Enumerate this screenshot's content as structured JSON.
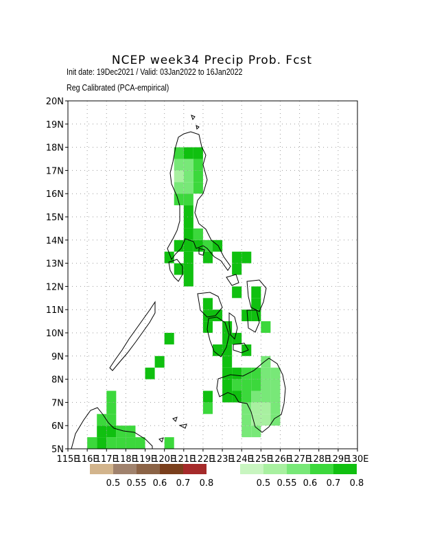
{
  "title": "NCEP week34 Precip Prob. Fcst",
  "subtitle_1": "Init date: 19Dec2021 / Valid: 03Jan2022 to 16Jan2022",
  "subtitle_2": "Reg Calibrated (PCA-empirical)",
  "map": {
    "lon_range": [
      115,
      130
    ],
    "lat_range": [
      5,
      20
    ],
    "grid": "dotted",
    "lat_ticks": [
      "5N",
      "6N",
      "7N",
      "8N",
      "9N",
      "10N",
      "11N",
      "12N",
      "13N",
      "14N",
      "15N",
      "16N",
      "17N",
      "18N",
      "19N",
      "20N"
    ],
    "lon_ticks": [
      "115E",
      "116E",
      "117E",
      "118E",
      "119E",
      "120E",
      "121E",
      "122E",
      "123E",
      "124E",
      "125E",
      "126E",
      "127E",
      "128E",
      "129E",
      "130E"
    ]
  },
  "legend_dry": {
    "labels": [
      "0.5",
      "0.55",
      "0.6",
      "0.7",
      "0.8"
    ],
    "colors": [
      "#d2b48c",
      "#a0826d",
      "#8b6346",
      "#7a3f1c",
      "#a52a2a"
    ]
  },
  "legend_wet": {
    "labels": [
      "0.5",
      "0.55",
      "0.6",
      "0.7",
      "0.8"
    ],
    "colors": [
      "#c8f5c0",
      "#a8f0a0",
      "#78e878",
      "#3cd83c",
      "#10c010"
    ]
  },
  "cells": [
    {
      "lon": 120.75,
      "lat": 17.75,
      "level": 3
    },
    {
      "lon": 121.25,
      "lat": 17.75,
      "level": 4
    },
    {
      "lon": 121.75,
      "lat": 17.75,
      "level": 4
    },
    {
      "lon": 120.75,
      "lat": 17.25,
      "level": 2
    },
    {
      "lon": 121.25,
      "lat": 17.25,
      "level": 2
    },
    {
      "lon": 121.75,
      "lat": 17.25,
      "level": 3
    },
    {
      "lon": 120.75,
      "lat": 16.75,
      "level": 1
    },
    {
      "lon": 121.25,
      "lat": 16.75,
      "level": 2
    },
    {
      "lon": 121.75,
      "lat": 16.75,
      "level": 3
    },
    {
      "lon": 120.75,
      "lat": 16.25,
      "level": 2
    },
    {
      "lon": 121.25,
      "lat": 16.25,
      "level": 2
    },
    {
      "lon": 121.75,
      "lat": 16.25,
      "level": 3
    },
    {
      "lon": 120.75,
      "lat": 15.75,
      "level": 3
    },
    {
      "lon": 121.25,
      "lat": 15.75,
      "level": 3
    },
    {
      "lon": 121.25,
      "lat": 15.25,
      "level": 4
    },
    {
      "lon": 121.25,
      "lat": 14.75,
      "level": 4
    },
    {
      "lon": 121.25,
      "lat": 14.25,
      "level": 4
    },
    {
      "lon": 121.75,
      "lat": 14.25,
      "level": 3
    },
    {
      "lon": 120.75,
      "lat": 13.75,
      "level": 4
    },
    {
      "lon": 121.25,
      "lat": 13.75,
      "level": 4
    },
    {
      "lon": 121.75,
      "lat": 13.75,
      "level": 4
    },
    {
      "lon": 122.25,
      "lat": 13.75,
      "level": 3
    },
    {
      "lon": 122.75,
      "lat": 13.75,
      "level": 4
    },
    {
      "lon": 120.25,
      "lat": 13.25,
      "level": 4
    },
    {
      "lon": 121.25,
      "lat": 13.25,
      "level": 4
    },
    {
      "lon": 122.25,
      "lat": 13.25,
      "level": 4
    },
    {
      "lon": 123.75,
      "lat": 13.25,
      "level": 4
    },
    {
      "lon": 124.25,
      "lat": 13.25,
      "level": 4
    },
    {
      "lon": 120.75,
      "lat": 12.75,
      "level": 4
    },
    {
      "lon": 121.25,
      "lat": 12.75,
      "level": 4
    },
    {
      "lon": 123.75,
      "lat": 12.75,
      "level": 4
    },
    {
      "lon": 121.25,
      "lat": 12.25,
      "level": 4
    },
    {
      "lon": 123.75,
      "lat": 11.75,
      "level": 4
    },
    {
      "lon": 124.75,
      "lat": 11.75,
      "level": 4
    },
    {
      "lon": 122.25,
      "lat": 11.25,
      "level": 4
    },
    {
      "lon": 124.75,
      "lat": 11.25,
      "level": 4
    },
    {
      "lon": 122.25,
      "lat": 10.75,
      "level": 4
    },
    {
      "lon": 122.75,
      "lat": 10.75,
      "level": 4
    },
    {
      "lon": 124.25,
      "lat": 10.75,
      "level": 4
    },
    {
      "lon": 124.75,
      "lat": 10.75,
      "level": 4
    },
    {
      "lon": 122.25,
      "lat": 10.25,
      "level": 4
    },
    {
      "lon": 123.25,
      "lat": 10.25,
      "level": 4
    },
    {
      "lon": 125.25,
      "lat": 10.25,
      "level": 3
    },
    {
      "lon": 123.25,
      "lat": 9.75,
      "level": 4
    },
    {
      "lon": 123.75,
      "lat": 9.75,
      "level": 4
    },
    {
      "lon": 122.75,
      "lat": 9.25,
      "level": 4
    },
    {
      "lon": 123.25,
      "lat": 9.25,
      "level": 4
    },
    {
      "lon": 124.25,
      "lat": 9.25,
      "level": 4
    },
    {
      "lon": 123.25,
      "lat": 8.75,
      "level": 4
    },
    {
      "lon": 125.25,
      "lat": 8.75,
      "level": 2
    },
    {
      "lon": 123.25,
      "lat": 8.25,
      "level": 4
    },
    {
      "lon": 123.75,
      "lat": 8.25,
      "level": 4
    },
    {
      "lon": 124.25,
      "lat": 8.25,
      "level": 3
    },
    {
      "lon": 124.75,
      "lat": 8.25,
      "level": 3
    },
    {
      "lon": 125.25,
      "lat": 8.25,
      "level": 2
    },
    {
      "lon": 125.75,
      "lat": 8.25,
      "level": 2
    },
    {
      "lon": 122.25,
      "lat": 7.25,
      "level": 4
    },
    {
      "lon": 123.25,
      "lat": 7.75,
      "level": 4
    },
    {
      "lon": 123.75,
      "lat": 7.75,
      "level": 3
    },
    {
      "lon": 124.25,
      "lat": 7.75,
      "level": 3
    },
    {
      "lon": 124.75,
      "lat": 7.75,
      "level": 3
    },
    {
      "lon": 125.25,
      "lat": 7.75,
      "level": 2
    },
    {
      "lon": 125.75,
      "lat": 7.75,
      "level": 2
    },
    {
      "lon": 123.25,
      "lat": 7.25,
      "level": 4
    },
    {
      "lon": 123.75,
      "lat": 7.25,
      "level": 4
    },
    {
      "lon": 124.25,
      "lat": 7.25,
      "level": 3
    },
    {
      "lon": 124.75,
      "lat": 7.25,
      "level": 2
    },
    {
      "lon": 125.25,
      "lat": 7.25,
      "level": 2
    },
    {
      "lon": 125.75,
      "lat": 7.25,
      "level": 2
    },
    {
      "lon": 122.25,
      "lat": 6.75,
      "level": 3
    },
    {
      "lon": 124.25,
      "lat": 6.75,
      "level": 2
    },
    {
      "lon": 124.75,
      "lat": 6.75,
      "level": 1
    },
    {
      "lon": 125.25,
      "lat": 6.75,
      "level": 1
    },
    {
      "lon": 125.75,
      "lat": 6.75,
      "level": 2
    },
    {
      "lon": 124.25,
      "lat": 6.25,
      "level": 2
    },
    {
      "lon": 124.75,
      "lat": 6.25,
      "level": 1
    },
    {
      "lon": 125.25,
      "lat": 6.25,
      "level": 1
    },
    {
      "lon": 125.75,
      "lat": 6.25,
      "level": 2
    },
    {
      "lon": 124.25,
      "lat": 5.75,
      "level": 2
    },
    {
      "lon": 124.75,
      "lat": 5.75,
      "level": 2
    },
    {
      "lon": 120.25,
      "lat": 9.75,
      "level": 4
    },
    {
      "lon": 119.75,
      "lat": 8.75,
      "level": 4
    },
    {
      "lon": 119.25,
      "lat": 8.25,
      "level": 4
    },
    {
      "lon": 117.25,
      "lat": 7.25,
      "level": 3
    },
    {
      "lon": 117.25,
      "lat": 6.75,
      "level": 3
    },
    {
      "lon": 116.75,
      "lat": 6.25,
      "level": 3
    },
    {
      "lon": 117.25,
      "lat": 6.25,
      "level": 3
    },
    {
      "lon": 116.75,
      "lat": 5.75,
      "level": 4
    },
    {
      "lon": 117.25,
      "lat": 5.75,
      "level": 4
    },
    {
      "lon": 117.75,
      "lat": 5.75,
      "level": 3
    },
    {
      "lon": 118.25,
      "lat": 5.75,
      "level": 3
    },
    {
      "lon": 116.25,
      "lat": 5.25,
      "level": 3
    },
    {
      "lon": 116.75,
      "lat": 5.25,
      "level": 4
    },
    {
      "lon": 117.25,
      "lat": 5.25,
      "level": 3
    },
    {
      "lon": 117.75,
      "lat": 5.25,
      "level": 3
    },
    {
      "lon": 118.25,
      "lat": 5.25,
      "level": 3
    },
    {
      "lon": 118.75,
      "lat": 5.25,
      "level": 3
    },
    {
      "lon": 120.25,
      "lat": 5.25,
      "level": 3
    }
  ]
}
